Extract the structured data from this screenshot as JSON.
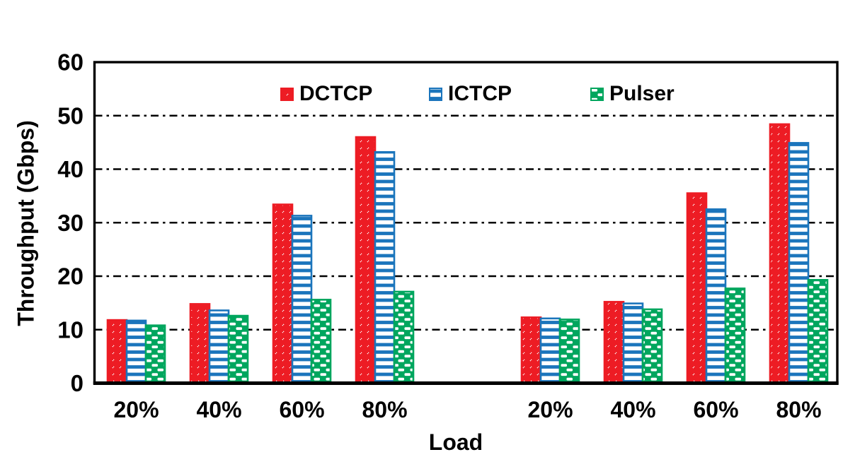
{
  "chart_data": {
    "type": "bar",
    "title": "",
    "xlabel": "Load",
    "ylabel": "Throughput (Gbps)",
    "ylim": [
      0,
      60
    ],
    "yticks": [
      0,
      10,
      20,
      30,
      40,
      50,
      60
    ],
    "grid": "horizontal dash-dot lines at each ytick, drawn behind bars",
    "legend_position": "top-inside-horizontal",
    "groups": {
      "count": 2,
      "size": 4,
      "note": "categories repeat twice with a one-cluster gap between groups"
    },
    "categories": [
      "20%",
      "40%",
      "60%",
      "80%",
      "20%",
      "40%",
      "60%",
      "80%"
    ],
    "series": [
      {
        "name": "DCTCP",
        "color": "#ed1c24",
        "pattern": "diagonal-hatch",
        "values": [
          11.8,
          14.8,
          33.4,
          46.0,
          12.3,
          15.2,
          35.5,
          48.4
        ]
      },
      {
        "name": "ICTCP",
        "color": "#1b75bc",
        "pattern": "horizontal-lines",
        "values": [
          11.7,
          13.6,
          31.3,
          43.2,
          12.1,
          14.9,
          32.5,
          44.9
        ]
      },
      {
        "name": "Pulser",
        "color": "#00a65e",
        "pattern": "white-dashes-on-solid",
        "values": [
          10.8,
          12.6,
          15.6,
          17.1,
          11.9,
          13.8,
          17.7,
          19.3
        ]
      }
    ]
  },
  "colors": {
    "axis": "#000000",
    "text": "#000000",
    "background": "#ffffff",
    "dctcp": "#ed1c24",
    "ictcp": "#1b75bc",
    "pulser": "#00a65e"
  }
}
